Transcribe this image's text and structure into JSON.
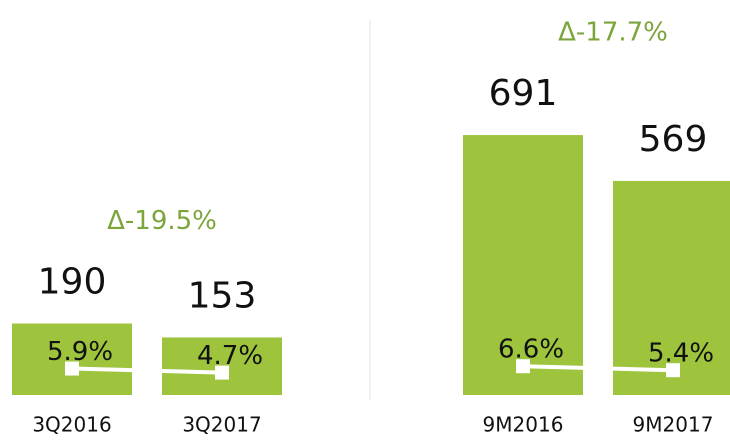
{
  "chart_data": [
    {
      "type": "bar",
      "annotation": "Δ-19.5%",
      "annotation_color": "#7ba53a",
      "categories": [
        "3Q2016",
        "3Q2017"
      ],
      "series": [
        {
          "color": "#9dc43c",
          "values": [
            190,
            153
          ]
        },
        {
          "type": "line",
          "axis": "y2",
          "color": "#ffffff",
          "values": [
            5.9,
            4.7
          ],
          "value_labels": [
            "5.9%",
            "4.7%"
          ]
        }
      ],
      "ylim": [
        0,
        1050
      ],
      "y2lim": [
        -2,
        116
      ]
    },
    {
      "type": "bar",
      "annotation": "Δ-17.7%",
      "annotation_color": "#7ba53a",
      "categories": [
        "9M2016",
        "9M2017"
      ],
      "series": [
        {
          "color": "#9dc43c",
          "values": [
            691,
            569
          ]
        },
        {
          "type": "line",
          "axis": "y2",
          "color": "#ffffff",
          "values": [
            6.6,
            5.4
          ],
          "value_labels": [
            "6.6%",
            "5.4%"
          ]
        }
      ],
      "ylim": [
        0,
        1050
      ],
      "y2lim": [
        -2,
        116
      ]
    }
  ]
}
